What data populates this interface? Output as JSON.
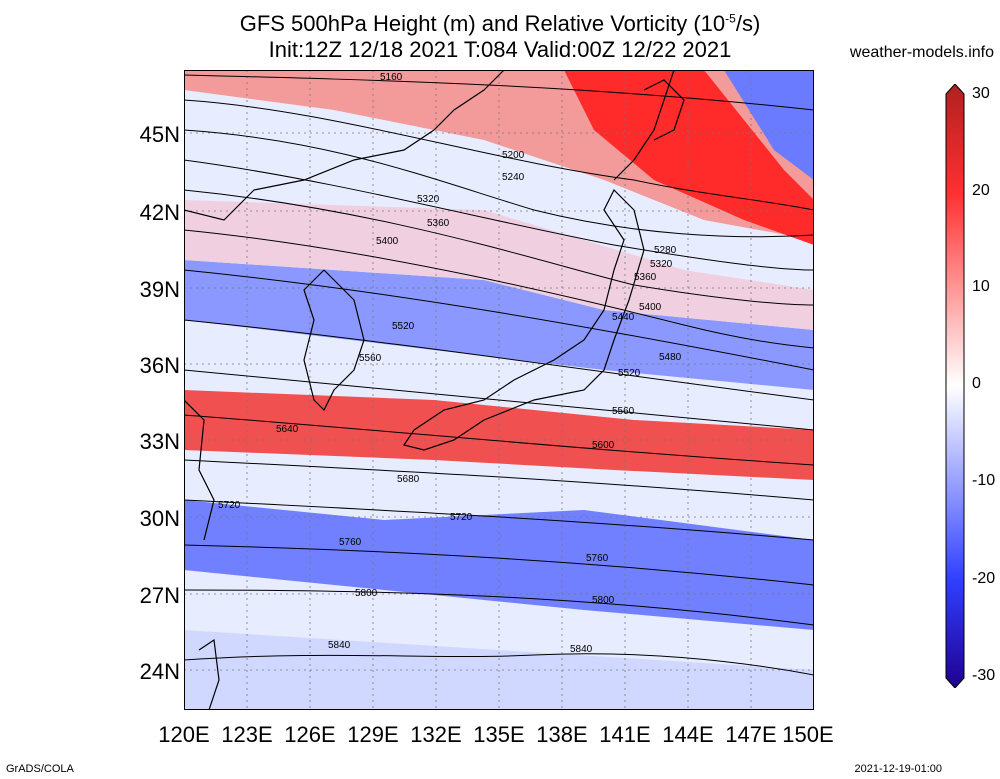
{
  "title": {
    "line1": "GFS 500hPa Height (m) and Relative Vorticity (10",
    "exponent": "-5",
    "line1_end": "/s)",
    "line2": "Init:12Z 12/18 2021 T:084 Valid:00Z 12/22 2021"
  },
  "site": "weather-models.info",
  "footer": {
    "left": "GrADS/COLA",
    "right": "2021-12-19-01:00"
  },
  "map": {
    "lat_labels": [
      "45N",
      "42N",
      "39N",
      "36N",
      "33N",
      "30N",
      "27N",
      "24N"
    ],
    "lon_labels": [
      "120E",
      "123E",
      "126E",
      "129E",
      "132E",
      "135E",
      "138E",
      "141E",
      "144E",
      "147E",
      "150E"
    ],
    "contour_labels": [
      "5160",
      "5200",
      "5240",
      "5280",
      "5320",
      "5320",
      "5360",
      "5360",
      "5400",
      "5400",
      "5440",
      "5480",
      "5520",
      "5520",
      "5560",
      "5560",
      "5600",
      "5640",
      "5680",
      "5720",
      "5720",
      "5760",
      "5760",
      "5800",
      "5800",
      "5840",
      "5840"
    ]
  },
  "colorbar": {
    "labels": [
      "30",
      "20",
      "10",
      "0",
      "-10",
      "-20",
      "-30"
    ],
    "colors": {
      "max": "#b02020",
      "pos": "#ff3030",
      "zero": "#ffffff",
      "neg": "#3040ff",
      "min": "#200090"
    }
  }
}
